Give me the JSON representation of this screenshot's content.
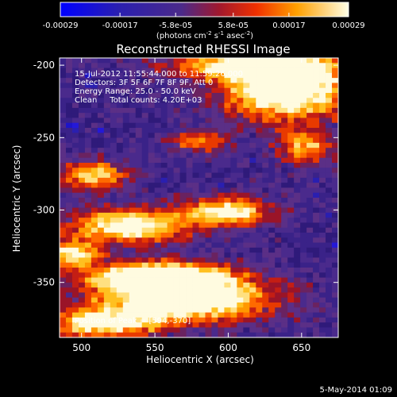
{
  "colorbar": {
    "ticks": [
      "-0.00029",
      "-0.00017",
      "-5.8e-05",
      "5.8e-05",
      "0.00017",
      "0.00029"
    ],
    "unit_main": "(photons cm",
    "unit_exp1": "-2",
    "unit_mid": " s",
    "unit_exp2": "-1",
    "unit_end": " asec",
    "unit_exp3": "-2",
    "unit_close": ")",
    "range": [
      -0.00029,
      0.00029
    ],
    "colors": [
      "#0000ff",
      "#3a2a8e",
      "#5a3590",
      "#c8281e",
      "#ff5a00",
      "#ffb000",
      "#ffffe6"
    ]
  },
  "chart_data": {
    "type": "heatmap",
    "title": "Reconstructed RHESSI Image",
    "xlabel": "Heliocentric X (arcsec)",
    "ylabel": "Heliocentric Y (arcsec)",
    "xlim": [
      485,
      675
    ],
    "ylim": [
      -388,
      -195
    ],
    "x_ticks": [
      500,
      550,
      600,
      650
    ],
    "y_ticks": [
      -200,
      -250,
      -300,
      -350
    ],
    "annotations": [
      "15-Jul-2012 11:55:44.000 to 11:59:26.000",
      "Detectors: 3F 5F 6F 7F 8F 9F, Att 0",
      "Energy Range: 25.0 - 50.0 keV",
      "Clean     Total counts: 4.20E+03"
    ],
    "peak_label": "Position of Peak = [594,-370]",
    "peak": [
      594,
      -370
    ],
    "grid_cols": 44,
    "grid_rows": 56,
    "grid": false
  },
  "footer": {
    "date": "5-May-2014 01:09"
  }
}
